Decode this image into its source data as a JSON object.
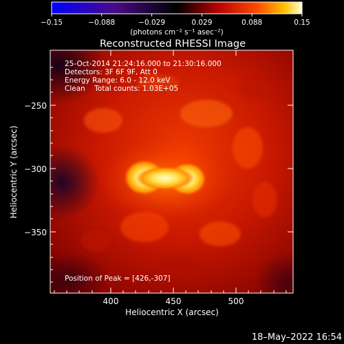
{
  "colorbar": {
    "tick_labels": [
      "−0.15",
      "−0.088",
      "−0.029",
      "0.029",
      "0.088",
      "0.15"
    ],
    "unit_label": "(photons cm⁻² s⁻¹ asec⁻²)"
  },
  "image": {
    "title": "Reconstructed RHESSI Image",
    "info_lines": [
      "25-Oct-2014 21:24:16.000 to 21:30:16.000",
      "Detectors: 3F 6F 9F, Att 0",
      "Energy Range: 6.0 - 12.0 keV",
      "Clean    Total counts: 1.03E+05"
    ],
    "peak_text": "Position of Peak = [426,-307]"
  },
  "axes": {
    "x_label": "Heliocentric X (arcsec)",
    "y_label": "Heliocentric Y (arcsec)",
    "x_ticks": [
      "400",
      "450",
      "500"
    ],
    "y_ticks": [
      "−250",
      "−300",
      "−350"
    ]
  },
  "footer": {
    "date": "18–May–2022 16:54"
  }
}
